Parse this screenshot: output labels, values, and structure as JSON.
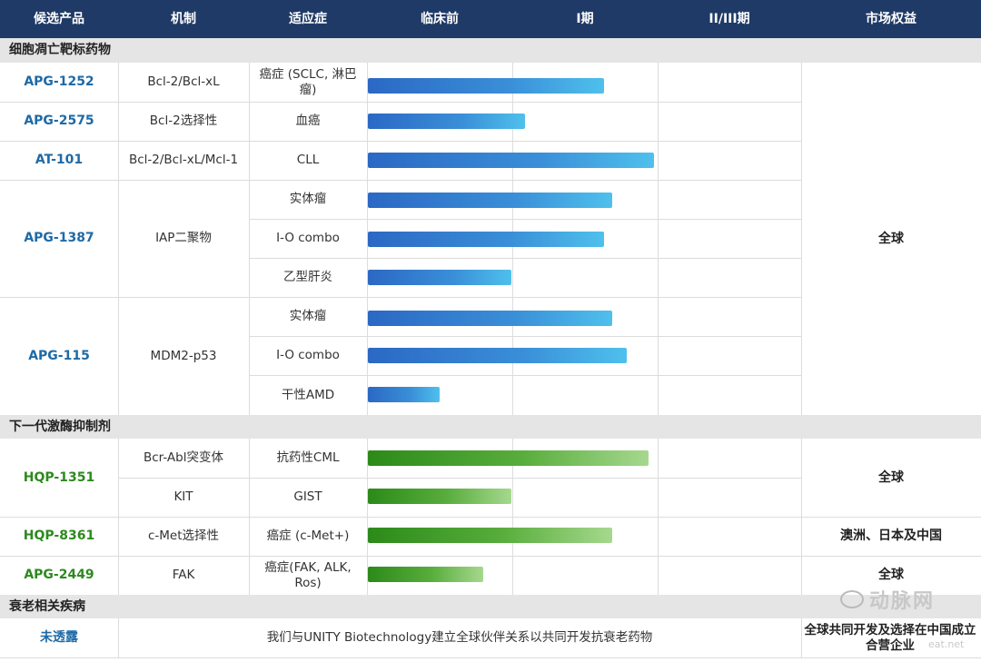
{
  "header": [
    "候选产品",
    "机制",
    "适应症",
    "临床前",
    "I期",
    "II/III期",
    "市场权益"
  ],
  "sections": {
    "apoptosis": "细胞凋亡靶标药物",
    "kinase": "下一代激酶抑制剂",
    "aging": "衰老相关疾病"
  },
  "candidates": [
    {
      "name": "APG-1252",
      "color": "#1e6aa6"
    },
    {
      "name": "APG-2575",
      "color": "#1e6aa6"
    },
    {
      "name": "AT-101",
      "color": "#1e6aa6"
    },
    {
      "name": "APG-1387",
      "color": "#1e6aa6"
    },
    {
      "name": "APG-115",
      "color": "#1e6aa6"
    },
    {
      "name": "HQP-1351",
      "color": "#2d8a1e"
    },
    {
      "name": "HQP-8361",
      "color": "#2d8a1e"
    },
    {
      "name": "APG-2449",
      "color": "#2d8a1e"
    },
    {
      "name": "未透露",
      "color": "#1e6aa6"
    }
  ],
  "mechanisms": [
    "Bcl-2/Bcl-xL",
    "Bcl-2选择性",
    "Bcl-2/Bcl-xL/Mcl-1",
    "IAP二聚物",
    "MDM2-p53",
    "Bcr-Abl突变体",
    "KIT",
    "c-Met选择性",
    "FAK"
  ],
  "indications": [
    {
      "label": "癌症 (SCLC, 淋巴瘤)",
      "progress": 0.548
    },
    {
      "label": "血癌",
      "progress": 0.364
    },
    {
      "label": "CLL",
      "progress": 0.664
    },
    {
      "label": "实体瘤",
      "progress": 0.566
    },
    {
      "label": "I-O combo",
      "progress": 0.548
    },
    {
      "label": "乙型肝炎",
      "progress": 0.332
    },
    {
      "label": "实体瘤",
      "progress": 0.566
    },
    {
      "label": "I-O combo",
      "progress": 0.6
    },
    {
      "label": "干性AMD",
      "progress": 0.166
    },
    {
      "label": "抗药性CML",
      "progress": 0.65
    },
    {
      "label": "GIST",
      "progress": 0.332
    },
    {
      "label": "癌症 (c-Met+)",
      "progress": 0.566
    },
    {
      "label": "癌症(FAK, ALK, Ros)",
      "progress": 0.268
    }
  ],
  "markets": {
    "apoptosis": "全球",
    "hqp1351": "全球",
    "hqp8361": "澳洲、日本及中国",
    "apg2449": "全球",
    "aging": "全球共同开发及选择在中国成立合营企业"
  },
  "aging_description": "我们与UNITY Biotechnology建立全球伙伴关系以共同开发抗衰老药物",
  "watermark": "动脉网",
  "watermark_sub": "eat.net"
}
